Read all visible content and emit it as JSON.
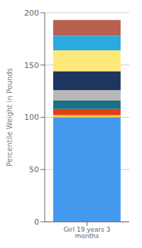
{
  "chart_data": {
    "type": "bar",
    "stacked": true,
    "ylabel": "Percentile Weight in Pounds",
    "categories": [
      "Girl 19 years 3 months"
    ],
    "series": [
      {
        "color": "#4499ee",
        "values": [
          100
        ]
      },
      {
        "color": "#f5c842",
        "values": [
          2
        ]
      },
      {
        "color": "#e04010",
        "values": [
          6
        ]
      },
      {
        "color": "#1a7085",
        "values": [
          8
        ]
      },
      {
        "color": "#b8b8b8",
        "values": [
          10
        ]
      },
      {
        "color": "#1e3560",
        "values": [
          18
        ]
      },
      {
        "color": "#ffe87a",
        "values": [
          20
        ]
      },
      {
        "color": "#29aae1",
        "values": [
          14
        ]
      },
      {
        "color": "#b86050",
        "values": [
          15
        ]
      }
    ],
    "ylim": [
      0,
      200
    ],
    "yticks": [
      0,
      50,
      100,
      150,
      200
    ],
    "grid": true
  }
}
